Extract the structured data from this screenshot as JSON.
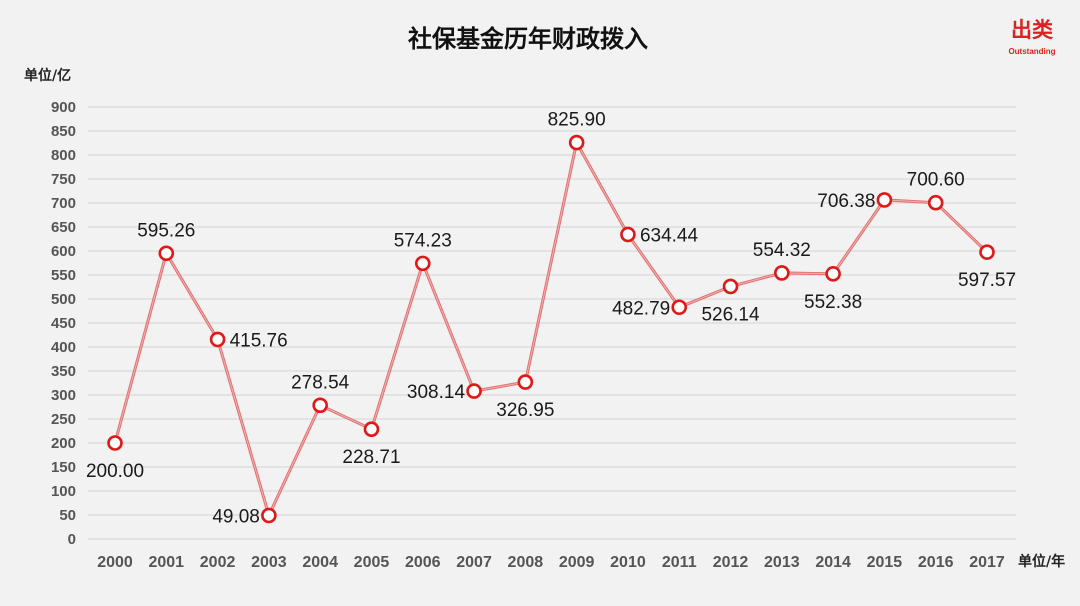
{
  "logo": {
    "main": "出类",
    "sub": "Outstanding"
  },
  "colors": {
    "background": "#f2f2f2",
    "line": "#e07070",
    "marker_stroke": "#e01818",
    "marker_fill": "#ffffff",
    "grid": "#d4d4d4",
    "logo": "#e02020"
  },
  "chart_data": {
    "type": "line",
    "title": "社保基金历年财政拨入",
    "ylabel": "单位/亿",
    "xlabel": "单位/年",
    "ylim": [
      0,
      900
    ],
    "yticks": [
      0,
      50,
      100,
      150,
      200,
      250,
      300,
      350,
      400,
      450,
      500,
      550,
      600,
      650,
      700,
      750,
      800,
      850,
      900
    ],
    "grid": true,
    "legend": "none",
    "categories": [
      "2000",
      "2001",
      "2002",
      "2003",
      "2004",
      "2005",
      "2006",
      "2007",
      "2008",
      "2009",
      "2010",
      "2011",
      "2012",
      "2013",
      "2014",
      "2015",
      "2016",
      "2017"
    ],
    "series": [
      {
        "values": [
          200.0,
          595.26,
          415.76,
          49.08,
          278.54,
          228.71,
          574.23,
          308.14,
          326.95,
          825.9,
          634.44,
          482.79,
          526.14,
          554.32,
          552.38,
          706.38,
          700.6,
          597.57
        ],
        "labels": [
          "200.00",
          "595.26",
          "415.76",
          "49.08",
          "278.54",
          "228.71",
          "574.23",
          "308.14",
          "326.95",
          "825.90",
          "634.44",
          "482.79",
          "526.14",
          "554.32",
          "552.38",
          "706.38",
          "700.60",
          "597.57"
        ],
        "label_positions": [
          "below",
          "above",
          "right",
          "left",
          "above",
          "below",
          "above",
          "left",
          "below",
          "above",
          "right",
          "left",
          "below",
          "above",
          "below",
          "left",
          "above",
          "below"
        ]
      }
    ]
  }
}
